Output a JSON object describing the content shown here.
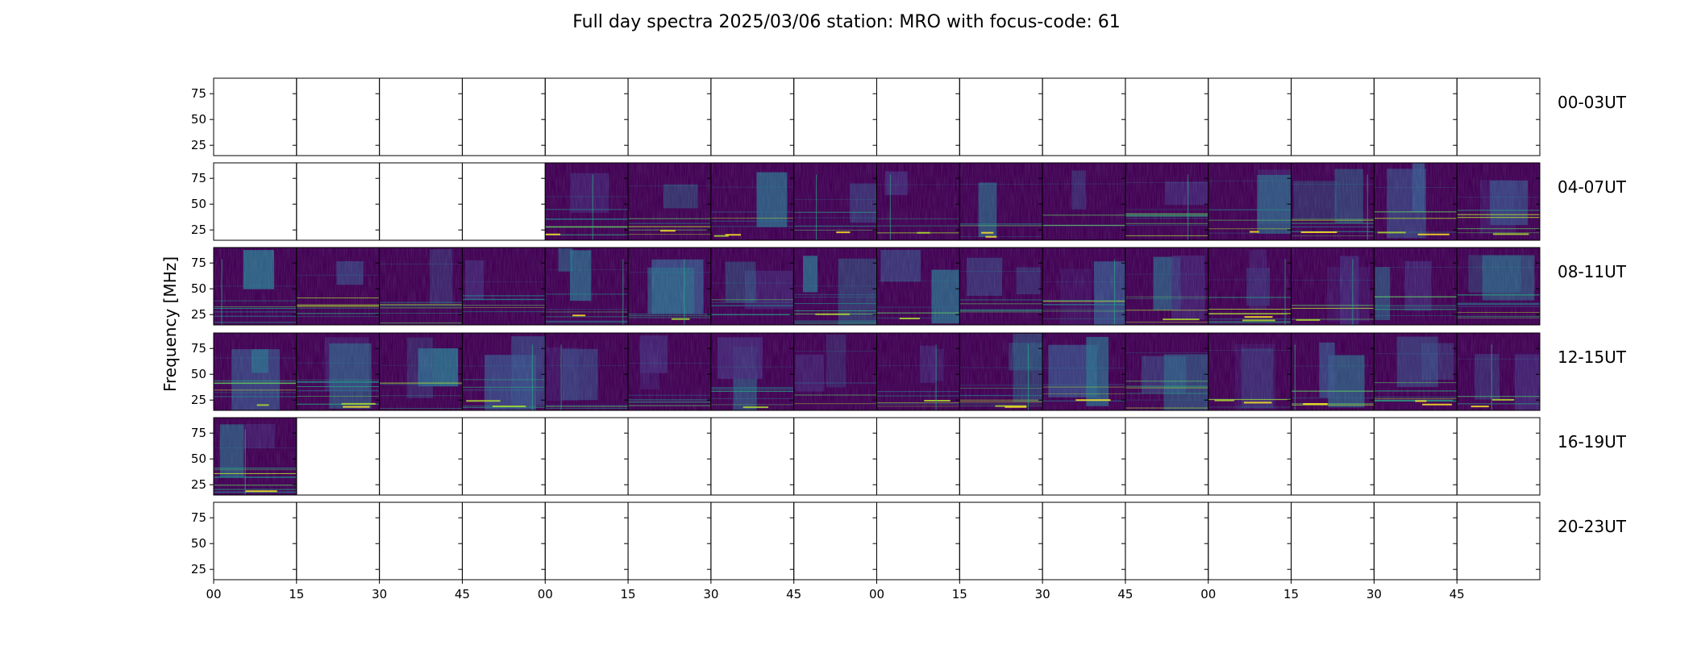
{
  "chart_data": {
    "type": "heatmap",
    "title": "Full day spectra 2025/03/06 station: MRO with focus-code: 61",
    "ylabel": "Frequency [MHz]",
    "ylim": [
      15,
      90
    ],
    "y_ticks": [
      "25",
      "50",
      "75"
    ],
    "x_ticks": [
      "00",
      "15",
      "30",
      "45",
      "00",
      "15",
      "30",
      "45",
      "00",
      "15",
      "30",
      "45",
      "00",
      "15",
      "30",
      "45"
    ],
    "colormap": [
      "#440154",
      "#472a7a",
      "#3b528b",
      "#2c728e",
      "#21918c",
      "#28ae80",
      "#5ec962",
      "#addc30",
      "#fde725"
    ],
    "rows": [
      {
        "label": "00-03UT",
        "panels": [
          0,
          0,
          0,
          0,
          0,
          0,
          0,
          0,
          0,
          0,
          0,
          0,
          0,
          0,
          0,
          0
        ]
      },
      {
        "label": "04-07UT",
        "panels": [
          0,
          0,
          0,
          0,
          1,
          1,
          1,
          1,
          1,
          1,
          1,
          1,
          1,
          1,
          1,
          1
        ]
      },
      {
        "label": "08-11UT",
        "panels": [
          1,
          1,
          1,
          1,
          1,
          1,
          1,
          1,
          1,
          1,
          1,
          1,
          1,
          1,
          1,
          1
        ]
      },
      {
        "label": "12-15UT",
        "panels": [
          1,
          1,
          1,
          1,
          1,
          1,
          1,
          1,
          1,
          1,
          1,
          1,
          1,
          1,
          1,
          1
        ]
      },
      {
        "label": "16-19UT",
        "panels": [
          1,
          0,
          0,
          0,
          0,
          0,
          0,
          0,
          0,
          0,
          0,
          0,
          0,
          0,
          0,
          0
        ]
      },
      {
        "label": "20-23UT",
        "panels": [
          0,
          0,
          0,
          0,
          0,
          0,
          0,
          0,
          0,
          0,
          0,
          0,
          0,
          0,
          0,
          0
        ]
      }
    ]
  }
}
